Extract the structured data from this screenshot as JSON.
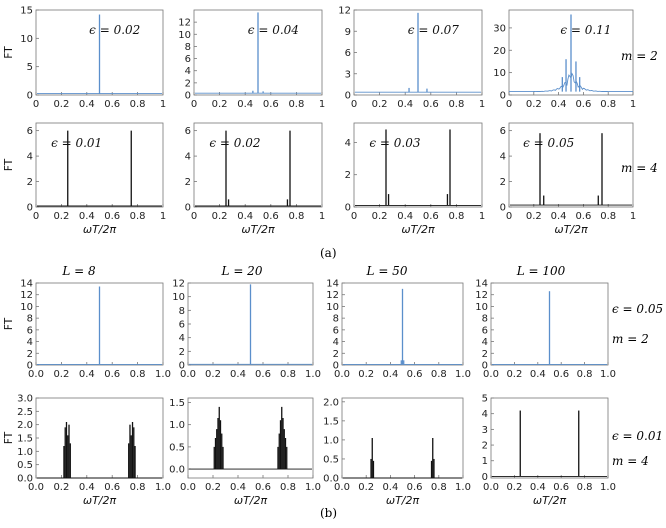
{
  "figure": {
    "caption_a": "(a)",
    "caption_b": "(b)",
    "ylabel": "FT",
    "xlabel": "ωT/2π",
    "row_labels_a": [
      "m = 2",
      "m = 4"
    ],
    "row_labels_b": [
      [
        "ϵ = 0.05",
        "m = 2"
      ],
      [
        "ϵ = 0.01",
        "m = 4"
      ]
    ],
    "col_titles_b": [
      "L = 8",
      "L = 20",
      "L = 50",
      "L = 100"
    ],
    "colors": {
      "blue": "#5b8fcb",
      "black": "#111111",
      "frame": "#777777"
    }
  },
  "chart_data": [
    {
      "id": "a11",
      "type": "line",
      "annotation": "ϵ = 0.02",
      "color": "blue",
      "xlim": [
        0,
        1
      ],
      "ylim": [
        0,
        15
      ],
      "yticks": [
        0,
        5,
        10,
        15
      ],
      "xticks": [
        0,
        0.2,
        0.4,
        0.6,
        0.8,
        1
      ],
      "peaks": [
        {
          "x": 0.5,
          "y": 14.2
        }
      ],
      "baseline": 0.25
    },
    {
      "id": "a12",
      "type": "line",
      "annotation": "ϵ = 0.04",
      "color": "blue",
      "xlim": [
        0,
        1
      ],
      "ylim": [
        0,
        14
      ],
      "yticks": [
        0,
        2,
        4,
        6,
        8,
        10,
        12
      ],
      "xticks": [
        0,
        0.2,
        0.4,
        0.6,
        0.8,
        1
      ],
      "peaks": [
        {
          "x": 0.5,
          "y": 13.6
        },
        {
          "x": 0.46,
          "y": 0.7
        },
        {
          "x": 0.54,
          "y": 0.6
        }
      ],
      "baseline": 0.3
    },
    {
      "id": "a13",
      "type": "line",
      "annotation": "ϵ = 0.07",
      "color": "blue",
      "xlim": [
        0,
        1
      ],
      "ylim": [
        0,
        12
      ],
      "yticks": [
        0,
        3,
        6,
        9,
        12
      ],
      "xticks": [
        0,
        0.2,
        0.4,
        0.6,
        0.8,
        1
      ],
      "peaks": [
        {
          "x": 0.5,
          "y": 11.6
        },
        {
          "x": 0.43,
          "y": 1.0
        },
        {
          "x": 0.57,
          "y": 0.9
        }
      ],
      "baseline": 0.4
    },
    {
      "id": "a14",
      "type": "line",
      "annotation": "ϵ = 0.11",
      "color": "blue",
      "xlim": [
        0,
        1
      ],
      "ylim": [
        0,
        38
      ],
      "yticks": [
        0,
        10,
        20,
        30
      ],
      "xticks": [
        0,
        0.2,
        0.4,
        0.6,
        0.8,
        1
      ],
      "peaks": [
        {
          "x": 0.5,
          "y": 36
        },
        {
          "x": 0.46,
          "y": 16
        },
        {
          "x": 0.54,
          "y": 15
        },
        {
          "x": 0.43,
          "y": 8
        },
        {
          "x": 0.57,
          "y": 8
        }
      ],
      "baseline": 1.5,
      "noisy": true
    },
    {
      "id": "a21",
      "type": "line",
      "annotation": "ϵ = 0.01",
      "color": "black",
      "xlim": [
        0,
        1
      ],
      "ylim": [
        0,
        6.6
      ],
      "yticks": [
        0,
        2,
        4,
        6
      ],
      "xticks": [
        0,
        0.2,
        0.4,
        0.6,
        0.8,
        1
      ],
      "peaks": [
        {
          "x": 0.25,
          "y": 6
        },
        {
          "x": 0.75,
          "y": 6
        }
      ],
      "baseline": 0.08
    },
    {
      "id": "a22",
      "type": "line",
      "annotation": "ϵ = 0.02",
      "color": "black",
      "xlim": [
        0,
        1
      ],
      "ylim": [
        0,
        6.6
      ],
      "yticks": [
        0,
        2,
        4,
        6
      ],
      "xticks": [
        0,
        0.2,
        0.4,
        0.6,
        0.8,
        1
      ],
      "peaks": [
        {
          "x": 0.25,
          "y": 6
        },
        {
          "x": 0.75,
          "y": 6
        },
        {
          "x": 0.27,
          "y": 0.6
        },
        {
          "x": 0.73,
          "y": 0.6
        }
      ],
      "baseline": 0.08
    },
    {
      "id": "a23",
      "type": "line",
      "annotation": "ϵ = 0.03",
      "color": "black",
      "xlim": [
        0,
        1
      ],
      "ylim": [
        0,
        5.2
      ],
      "yticks": [
        0,
        2,
        4
      ],
      "xticks": [
        0,
        0.2,
        0.4,
        0.6,
        0.8,
        1
      ],
      "peaks": [
        {
          "x": 0.25,
          "y": 4.8
        },
        {
          "x": 0.75,
          "y": 4.8
        },
        {
          "x": 0.27,
          "y": 0.8
        },
        {
          "x": 0.73,
          "y": 0.8
        }
      ],
      "baseline": 0.1
    },
    {
      "id": "a24",
      "type": "line",
      "annotation": "ϵ = 0.05",
      "color": "black",
      "xlim": [
        0,
        1
      ],
      "ylim": [
        0,
        6.6
      ],
      "yticks": [
        0,
        2,
        4,
        6
      ],
      "xticks": [
        0,
        0.2,
        0.4,
        0.6,
        0.8,
        1
      ],
      "peaks": [
        {
          "x": 0.25,
          "y": 5.8
        },
        {
          "x": 0.75,
          "y": 5.8
        },
        {
          "x": 0.28,
          "y": 0.9
        },
        {
          "x": 0.72,
          "y": 0.9
        }
      ],
      "baseline": 0.15
    },
    {
      "id": "b11",
      "type": "line",
      "color": "blue",
      "xlim": [
        0,
        1
      ],
      "ylim": [
        0,
        14
      ],
      "yticks": [
        0,
        2,
        4,
        6,
        8,
        10,
        12,
        14
      ],
      "xticks": [
        0.0,
        0.2,
        0.4,
        0.6,
        0.8,
        1.0
      ],
      "peaks": [
        {
          "x": 0.5,
          "y": 13.4
        }
      ],
      "baseline": 0.1
    },
    {
      "id": "b12",
      "type": "line",
      "color": "blue",
      "xlim": [
        0,
        1
      ],
      "ylim": [
        0,
        12
      ],
      "yticks": [
        0,
        2,
        4,
        6,
        8,
        10,
        12
      ],
      "xticks": [
        0.0,
        0.2,
        0.4,
        0.6,
        0.8,
        1.0
      ],
      "peaks": [
        {
          "x": 0.5,
          "y": 11.8
        }
      ],
      "baseline": 0.1
    },
    {
      "id": "b13",
      "type": "line",
      "color": "blue",
      "xlim": [
        0,
        1
      ],
      "ylim": [
        0,
        14
      ],
      "yticks": [
        0,
        2,
        4,
        6,
        8,
        10,
        12,
        14
      ],
      "xticks": [
        0.0,
        0.2,
        0.4,
        0.6,
        0.8,
        1.0
      ],
      "peaks": [
        {
          "x": 0.5,
          "y": 13.0
        },
        {
          "x": 0.49,
          "y": 0.8
        },
        {
          "x": 0.51,
          "y": 0.8
        }
      ],
      "baseline": 0.1
    },
    {
      "id": "b14",
      "type": "line",
      "color": "blue",
      "xlim": [
        0,
        1
      ],
      "ylim": [
        0,
        14
      ],
      "yticks": [
        0,
        2,
        4,
        6,
        8,
        10,
        12,
        14
      ],
      "xticks": [
        0.0,
        0.2,
        0.4,
        0.6,
        0.8,
        1.0
      ],
      "peaks": [
        {
          "x": 0.5,
          "y": 12.6
        }
      ],
      "baseline": 0.1
    },
    {
      "id": "b21",
      "type": "line",
      "color": "black",
      "xlim": [
        0,
        1
      ],
      "ylim": [
        0,
        3
      ],
      "yticks": [
        0.0,
        0.5,
        1.0,
        1.5,
        2.0,
        2.5,
        3.0
      ],
      "xticks": [
        0.0,
        0.2,
        0.4,
        0.6,
        0.8,
        1.0
      ],
      "peaks": [
        {
          "x": 0.22,
          "y": 1.2
        },
        {
          "x": 0.23,
          "y": 1.9
        },
        {
          "x": 0.24,
          "y": 2.1
        },
        {
          "x": 0.25,
          "y": 1.6
        },
        {
          "x": 0.26,
          "y": 2.0
        },
        {
          "x": 0.27,
          "y": 1.3
        },
        {
          "x": 0.73,
          "y": 1.3
        },
        {
          "x": 0.74,
          "y": 2.0
        },
        {
          "x": 0.75,
          "y": 1.6
        },
        {
          "x": 0.76,
          "y": 2.1
        },
        {
          "x": 0.77,
          "y": 1.9
        },
        {
          "x": 0.78,
          "y": 1.2
        }
      ],
      "baseline": 0.0
    },
    {
      "id": "b22",
      "type": "line",
      "color": "black",
      "xlim": [
        0,
        1
      ],
      "ylim": [
        -0.2,
        1.6
      ],
      "yticks": [
        0.0,
        0.5,
        1.0,
        1.5
      ],
      "xticks": [
        0.0,
        0.2,
        0.4,
        0.6,
        0.8,
        1.0
      ],
      "peaks": [
        {
          "x": 0.21,
          "y": 0.5
        },
        {
          "x": 0.22,
          "y": 0.7
        },
        {
          "x": 0.23,
          "y": 0.9
        },
        {
          "x": 0.24,
          "y": 1.15
        },
        {
          "x": 0.25,
          "y": 1.4
        },
        {
          "x": 0.26,
          "y": 1.1
        },
        {
          "x": 0.27,
          "y": 0.8
        },
        {
          "x": 0.28,
          "y": 0.5
        },
        {
          "x": 0.72,
          "y": 0.5
        },
        {
          "x": 0.73,
          "y": 0.8
        },
        {
          "x": 0.74,
          "y": 1.1
        },
        {
          "x": 0.75,
          "y": 1.4
        },
        {
          "x": 0.76,
          "y": 1.15
        },
        {
          "x": 0.77,
          "y": 0.9
        },
        {
          "x": 0.78,
          "y": 0.7
        },
        {
          "x": 0.79,
          "y": 0.5
        }
      ],
      "baseline": 0.0
    },
    {
      "id": "b23",
      "type": "line",
      "color": "black",
      "xlim": [
        0,
        1
      ],
      "ylim": [
        0,
        2.1
      ],
      "yticks": [
        0.0,
        0.5,
        1.0,
        1.5,
        2.0
      ],
      "xticks": [
        0.0,
        0.2,
        0.4,
        0.6,
        0.8,
        1.0
      ],
      "peaks": [
        {
          "x": 0.24,
          "y": 0.5
        },
        {
          "x": 0.25,
          "y": 1.05
        },
        {
          "x": 0.26,
          "y": 0.45
        },
        {
          "x": 0.74,
          "y": 0.45
        },
        {
          "x": 0.75,
          "y": 1.05
        },
        {
          "x": 0.76,
          "y": 0.5
        }
      ],
      "baseline": 0.0
    },
    {
      "id": "b24",
      "type": "line",
      "color": "black",
      "xlim": [
        0,
        1
      ],
      "ylim": [
        -0.1,
        5
      ],
      "yticks": [
        0,
        1,
        2,
        3,
        4,
        5
      ],
      "xticks": [
        0.0,
        0.2,
        0.4,
        0.6,
        0.8,
        1.0
      ],
      "peaks": [
        {
          "x": 0.25,
          "y": 4.2
        },
        {
          "x": 0.75,
          "y": 4.2
        }
      ],
      "baseline": 0.0
    }
  ]
}
